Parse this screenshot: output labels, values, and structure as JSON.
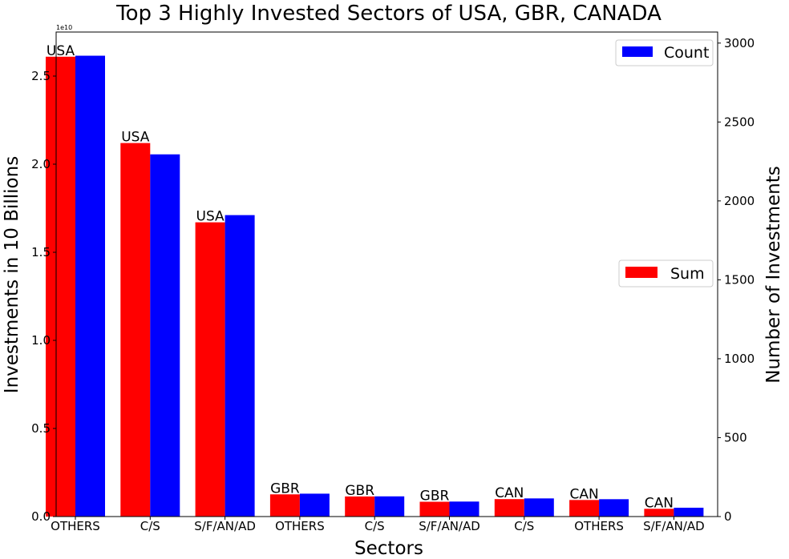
{
  "chart_data": {
    "type": "bar",
    "title": "Top 3 Highly Invested Sectors of USA, GBR, CANADA",
    "xlabel": "Sectors",
    "ylabel_left": "Investments in 10 Billions",
    "ylabel_right": "Number of Investments",
    "left_axis_offset_label": "1e10",
    "categories": [
      "OTHERS",
      "C/S",
      "S/F/AN/AD",
      "OTHERS",
      "C/S",
      "S/F/AN/AD",
      "C/S",
      "OTHERS",
      "S/F/AN/AD"
    ],
    "bar_labels": [
      "USA",
      "USA",
      "USA",
      "GBR",
      "GBR",
      "GBR",
      "CAN",
      "CAN",
      "CAN"
    ],
    "ylim_left": [
      0,
      2.75
    ],
    "ylim_right": [
      0,
      3070
    ],
    "yticks_left": [
      "0.0",
      "0.5",
      "1.0",
      "1.5",
      "2.0",
      "2.5"
    ],
    "yticks_left_values": [
      0,
      0.5,
      1.0,
      1.5,
      2.0,
      2.5
    ],
    "yticks_right": [
      "0",
      "500",
      "1000",
      "1500",
      "2000",
      "2500",
      "3000"
    ],
    "yticks_right_values": [
      0,
      500,
      1000,
      1500,
      2000,
      2500,
      3000
    ],
    "series": [
      {
        "name": "Sum",
        "axis": "left",
        "color": "#ff0000",
        "values": [
          2.61,
          2.12,
          1.67,
          0.126,
          0.114,
          0.084,
          0.099,
          0.094,
          0.044
        ]
      },
      {
        "name": "Count",
        "axis": "right",
        "color": "#0000ff",
        "values": [
          2920,
          2295,
          1910,
          145,
          128,
          95,
          115,
          110,
          56
        ]
      }
    ],
    "legends": [
      {
        "entry": "Count",
        "color": "#0000ff",
        "placement": "upper-right"
      },
      {
        "entry": "Sum",
        "color": "#ff0000",
        "placement": "center-right"
      }
    ],
    "grid": false
  }
}
